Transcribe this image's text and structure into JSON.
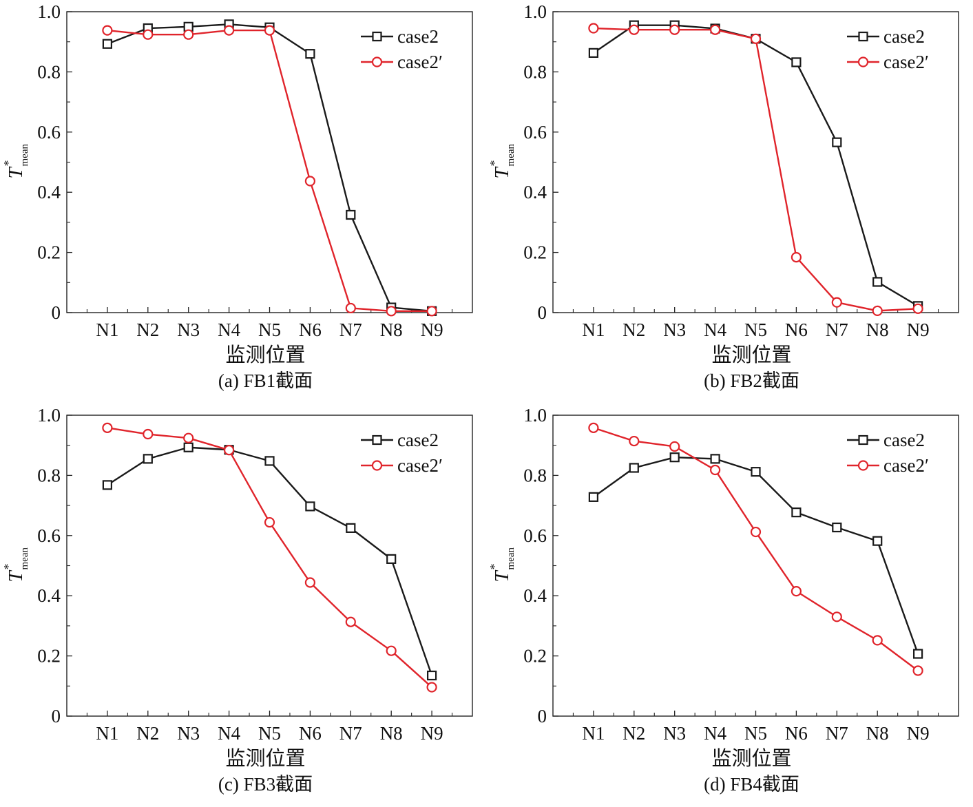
{
  "panels": [
    {
      "caption": "(a) FB1截面",
      "chart_data": {
        "type": "line",
        "categories": [
          "N1",
          "N2",
          "N3",
          "N4",
          "N5",
          "N6",
          "N7",
          "N8",
          "N9"
        ],
        "xlabel": "监测位置",
        "ylabel": {
          "base": "T",
          "sup": "*",
          "sub": "mean"
        },
        "ylim": [
          0,
          1.0
        ],
        "yticks": [
          "0",
          "0.2",
          "0.4",
          "0.6",
          "0.8",
          "1.0"
        ],
        "legend_position": "top-right",
        "series": [
          {
            "name": "case2",
            "color": "#1a1a1a",
            "marker": "square",
            "values": [
              0.893,
              0.945,
              0.95,
              0.958,
              0.948,
              0.86,
              0.325,
              0.017,
              0.005
            ]
          },
          {
            "name": "case2′",
            "color": "#e0242b",
            "marker": "circle",
            "values": [
              0.938,
              0.924,
              0.924,
              0.938,
              0.938,
              0.437,
              0.015,
              0.005,
              0.005
            ]
          }
        ]
      }
    },
    {
      "caption": "(b) FB2截面",
      "chart_data": {
        "type": "line",
        "categories": [
          "N1",
          "N2",
          "N3",
          "N4",
          "N5",
          "N6",
          "N7",
          "N8",
          "N9"
        ],
        "xlabel": "监测位置",
        "ylabel": {
          "base": "T",
          "sup": "*",
          "sub": "mean"
        },
        "ylim": [
          0,
          1.0
        ],
        "yticks": [
          "0",
          "0.2",
          "0.4",
          "0.6",
          "0.8",
          "1.0"
        ],
        "legend_position": "top-right",
        "series": [
          {
            "name": "case2",
            "color": "#1a1a1a",
            "marker": "square",
            "values": [
              0.863,
              0.955,
              0.955,
              0.944,
              0.91,
              0.832,
              0.566,
              0.102,
              0.022
            ]
          },
          {
            "name": "case2′",
            "color": "#e0242b",
            "marker": "circle",
            "values": [
              0.945,
              0.94,
              0.94,
              0.94,
              0.91,
              0.184,
              0.034,
              0.006,
              0.013
            ]
          }
        ]
      }
    },
    {
      "caption": "(c) FB3截面",
      "chart_data": {
        "type": "line",
        "categories": [
          "N1",
          "N2",
          "N3",
          "N4",
          "N5",
          "N6",
          "N7",
          "N8",
          "N9"
        ],
        "xlabel": "监测位置",
        "ylabel": {
          "base": "T",
          "sup": "*",
          "sub": "mean"
        },
        "ylim": [
          0,
          1.0
        ],
        "yticks": [
          "0",
          "0.2",
          "0.4",
          "0.6",
          "0.8",
          "1.0"
        ],
        "legend_position": "top-right",
        "series": [
          {
            "name": "case2",
            "color": "#1a1a1a",
            "marker": "square",
            "values": [
              0.768,
              0.855,
              0.893,
              0.885,
              0.848,
              0.697,
              0.625,
              0.522,
              0.135
            ]
          },
          {
            "name": "case2′",
            "color": "#e0242b",
            "marker": "circle",
            "values": [
              0.958,
              0.937,
              0.924,
              0.884,
              0.644,
              0.444,
              0.313,
              0.217,
              0.096
            ]
          }
        ]
      }
    },
    {
      "caption": "(d) FB4截面",
      "chart_data": {
        "type": "line",
        "categories": [
          "N1",
          "N2",
          "N3",
          "N4",
          "N5",
          "N6",
          "N7",
          "N8",
          "N9"
        ],
        "xlabel": "监测位置",
        "ylabel": {
          "base": "T",
          "sup": "*",
          "sub": "mean"
        },
        "ylim": [
          0,
          1.0
        ],
        "yticks": [
          "0",
          "0.2",
          "0.4",
          "0.6",
          "0.8",
          "1.0"
        ],
        "legend_position": "top-right",
        "series": [
          {
            "name": "case2",
            "color": "#1a1a1a",
            "marker": "square",
            "values": [
              0.728,
              0.825,
              0.86,
              0.855,
              0.812,
              0.677,
              0.627,
              0.582,
              0.207
            ]
          },
          {
            "name": "case2′",
            "color": "#e0242b",
            "marker": "circle",
            "values": [
              0.958,
              0.914,
              0.896,
              0.818,
              0.612,
              0.415,
              0.33,
              0.252,
              0.151
            ]
          }
        ]
      }
    }
  ]
}
